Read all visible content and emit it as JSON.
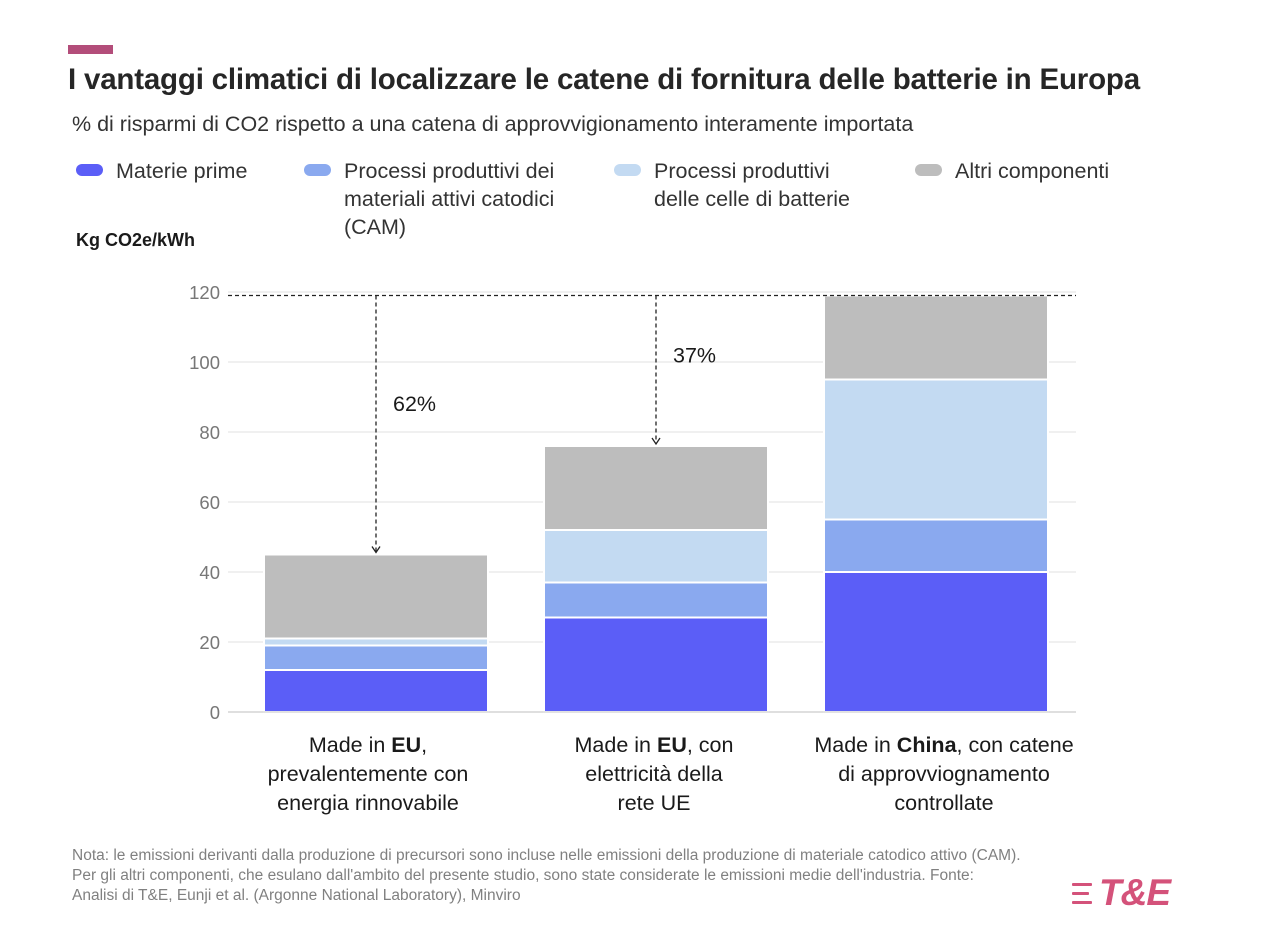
{
  "header": {
    "accent_color": "#b34d7a",
    "title": "I vantaggi climatici di localizzare le catene di fornitura delle batterie in Europa",
    "subtitle": "% di risparmi di CO2 rispetto a una catena di approvvigionamento interamente importata"
  },
  "legend": [
    {
      "label": "Materie prime",
      "color": "#5b5ef7"
    },
    {
      "label": "Processi produttivi dei\nmateriali attivi catodici\n(CAM)",
      "color": "#8aa9ef"
    },
    {
      "label": "Processi produttivi\ndelle celle di batterie",
      "color": "#c3daf2"
    },
    {
      "label": "Altri componenti",
      "color": "#bdbdbd"
    }
  ],
  "chart_data": {
    "type": "bar",
    "stacked": true,
    "ylabel": "Kg CO2e/kWh",
    "ylim": [
      0,
      120
    ],
    "yticks": [
      0,
      20,
      40,
      60,
      80,
      100,
      120
    ],
    "grid": true,
    "categories": [
      {
        "pre": "Made in ",
        "bold": "EU",
        "post": ",\nprevalentemente con\nenergia rinnovabile"
      },
      {
        "pre": "Made in ",
        "bold": "EU",
        "post": ", con\nelettricità della\nrete UE"
      },
      {
        "pre": "Made in ",
        "bold": "China",
        "post": ", con catene\ndi approvviognamento\ncontrollate"
      }
    ],
    "series": [
      {
        "name": "Materie prime",
        "color": "#5b5ef7",
        "values": [
          12,
          27,
          40
        ]
      },
      {
        "name": "Processi produttivi dei materiali attivi catodici (CAM)",
        "color": "#8aa9ef",
        "values": [
          7,
          10,
          15
        ]
      },
      {
        "name": "Processi produttivi delle celle di batterie",
        "color": "#c3daf2",
        "values": [
          2,
          15,
          40
        ]
      },
      {
        "name": "Altri componenti",
        "color": "#bdbdbd",
        "values": [
          24,
          24,
          24
        ]
      }
    ],
    "reference_line": {
      "value": 119
    },
    "annotations": [
      {
        "category_index": 0,
        "text": "62%"
      },
      {
        "category_index": 1,
        "text": "37%"
      }
    ]
  },
  "footer": {
    "note": "Nota: le emissioni derivanti dalla produzione di precursori sono incluse nelle emissioni della produzione di materiale catodico attivo (CAM). Per gli altri componenti, che esulano dall'ambito del presente studio, sono state considerate le emissioni medie dell'industria. Fonte: Analisi di T&E, Eunji et al. (Argonne National Laboratory), Minviro",
    "logo_text": "T&E",
    "logo_color": "#d4527a"
  }
}
